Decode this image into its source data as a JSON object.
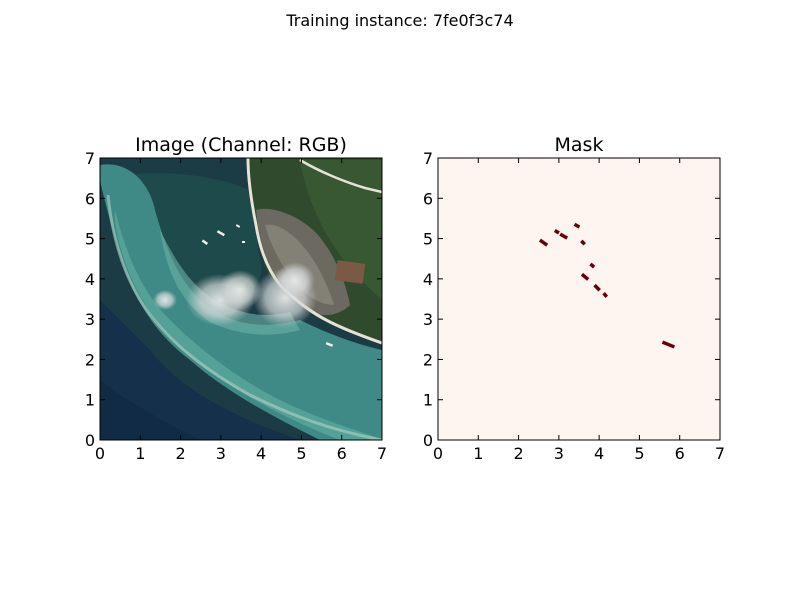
{
  "figure": {
    "suptitle": "Training instance: 7fe0f3c74"
  },
  "chart_data": [
    {
      "type": "heatmap",
      "title": "Image (Channel: RGB)",
      "content": "satellite image of coastline with reef, village and clouds",
      "xlim": [
        0,
        7
      ],
      "ylim": [
        0,
        7
      ],
      "xticks": [
        "0",
        "1",
        "2",
        "3",
        "4",
        "5",
        "6",
        "7"
      ],
      "yticks": [
        "0",
        "1",
        "2",
        "3",
        "4",
        "5",
        "6",
        "7"
      ],
      "grid": false
    },
    {
      "type": "heatmap",
      "title": "Mask",
      "colormap": "Reds",
      "background_color": "#fff5f0",
      "mark_color": "#67000d",
      "xlim": [
        0,
        7
      ],
      "ylim": [
        0,
        7
      ],
      "xticks": [
        "0",
        "1",
        "2",
        "3",
        "4",
        "5",
        "6",
        "7"
      ],
      "yticks": [
        "0",
        "1",
        "2",
        "3",
        "4",
        "5",
        "6",
        "7"
      ],
      "grid": false,
      "objects": [
        {
          "x": 2.62,
          "y": 4.9,
          "len": 0.22,
          "angle": -35
        },
        {
          "x": 2.95,
          "y": 5.17,
          "len": 0.12,
          "angle": -30
        },
        {
          "x": 3.12,
          "y": 5.06,
          "len": 0.2,
          "angle": -30
        },
        {
          "x": 3.45,
          "y": 5.32,
          "len": 0.14,
          "angle": -30
        },
        {
          "x": 3.6,
          "y": 4.9,
          "len": 0.12,
          "angle": -45
        },
        {
          "x": 3.65,
          "y": 4.05,
          "len": 0.2,
          "angle": -40
        },
        {
          "x": 3.83,
          "y": 4.33,
          "len": 0.12,
          "angle": -40
        },
        {
          "x": 3.95,
          "y": 3.78,
          "len": 0.18,
          "angle": -45
        },
        {
          "x": 4.15,
          "y": 3.6,
          "len": 0.12,
          "angle": -50
        },
        {
          "x": 5.72,
          "y": 2.37,
          "len": 0.32,
          "angle": -22
        }
      ]
    }
  ]
}
